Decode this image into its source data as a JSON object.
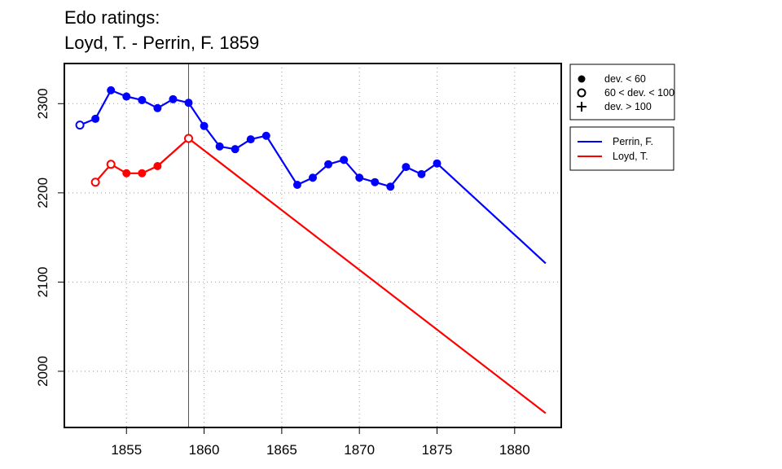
{
  "chart_data": {
    "type": "line",
    "title_line1": "Edo ratings:",
    "title_line2": "Loyd, T. - Perrin, F. 1859",
    "xlabel": "",
    "ylabel": "",
    "xlim": [
      1851,
      1883
    ],
    "ylim": [
      1937,
      2345
    ],
    "x_ticks": [
      1855,
      1860,
      1865,
      1870,
      1875,
      1880
    ],
    "y_ticks": [
      2000,
      2100,
      2200,
      2300
    ],
    "grid": true,
    "marker_line_year": 1859,
    "deviation_legend": {
      "placement": "top-right",
      "items": [
        {
          "symbol": "filled-circle",
          "label": "dev. < 60"
        },
        {
          "symbol": "open-circle",
          "label": "60 < dev. < 100"
        },
        {
          "symbol": "plus",
          "label": "dev. > 100"
        }
      ]
    },
    "series": [
      {
        "name": "Perrin, F.",
        "color": "#0000ff",
        "points": [
          {
            "x": 1852,
            "y": 2276,
            "marker": "open-circle"
          },
          {
            "x": 1853,
            "y": 2283,
            "marker": "filled-circle"
          },
          {
            "x": 1854,
            "y": 2315,
            "marker": "filled-circle"
          },
          {
            "x": 1855,
            "y": 2308,
            "marker": "filled-circle"
          },
          {
            "x": 1856,
            "y": 2304,
            "marker": "filled-circle"
          },
          {
            "x": 1857,
            "y": 2295,
            "marker": "filled-circle"
          },
          {
            "x": 1858,
            "y": 2305,
            "marker": "filled-circle"
          },
          {
            "x": 1859,
            "y": 2301,
            "marker": "filled-circle"
          },
          {
            "x": 1860,
            "y": 2275,
            "marker": "filled-circle"
          },
          {
            "x": 1861,
            "y": 2252,
            "marker": "filled-circle"
          },
          {
            "x": 1862,
            "y": 2249,
            "marker": "filled-circle"
          },
          {
            "x": 1863,
            "y": 2260,
            "marker": "filled-circle"
          },
          {
            "x": 1864,
            "y": 2264,
            "marker": "filled-circle"
          },
          {
            "x": 1866,
            "y": 2209,
            "marker": "filled-circle"
          },
          {
            "x": 1867,
            "y": 2217,
            "marker": "filled-circle"
          },
          {
            "x": 1868,
            "y": 2232,
            "marker": "filled-circle"
          },
          {
            "x": 1869,
            "y": 2237,
            "marker": "filled-circle"
          },
          {
            "x": 1870,
            "y": 2217,
            "marker": "filled-circle"
          },
          {
            "x": 1871,
            "y": 2212,
            "marker": "filled-circle"
          },
          {
            "x": 1872,
            "y": 2207,
            "marker": "filled-circle"
          },
          {
            "x": 1873,
            "y": 2229,
            "marker": "filled-circle"
          },
          {
            "x": 1874,
            "y": 2221,
            "marker": "filled-circle"
          },
          {
            "x": 1875,
            "y": 2233,
            "marker": "filled-circle"
          },
          {
            "x": 1882,
            "y": 2121,
            "marker": "none"
          }
        ]
      },
      {
        "name": "Loyd, T.",
        "color": "#ff0000",
        "points": [
          {
            "x": 1853,
            "y": 2212,
            "marker": "open-circle"
          },
          {
            "x": 1854,
            "y": 2232,
            "marker": "open-circle"
          },
          {
            "x": 1855,
            "y": 2222,
            "marker": "filled-circle"
          },
          {
            "x": 1856,
            "y": 2222,
            "marker": "filled-circle"
          },
          {
            "x": 1857,
            "y": 2230,
            "marker": "filled-circle"
          },
          {
            "x": 1859,
            "y": 2261,
            "marker": "open-circle"
          },
          {
            "x": 1882,
            "y": 1953,
            "marker": "none"
          }
        ]
      }
    ],
    "series_legend_placement": "right"
  }
}
